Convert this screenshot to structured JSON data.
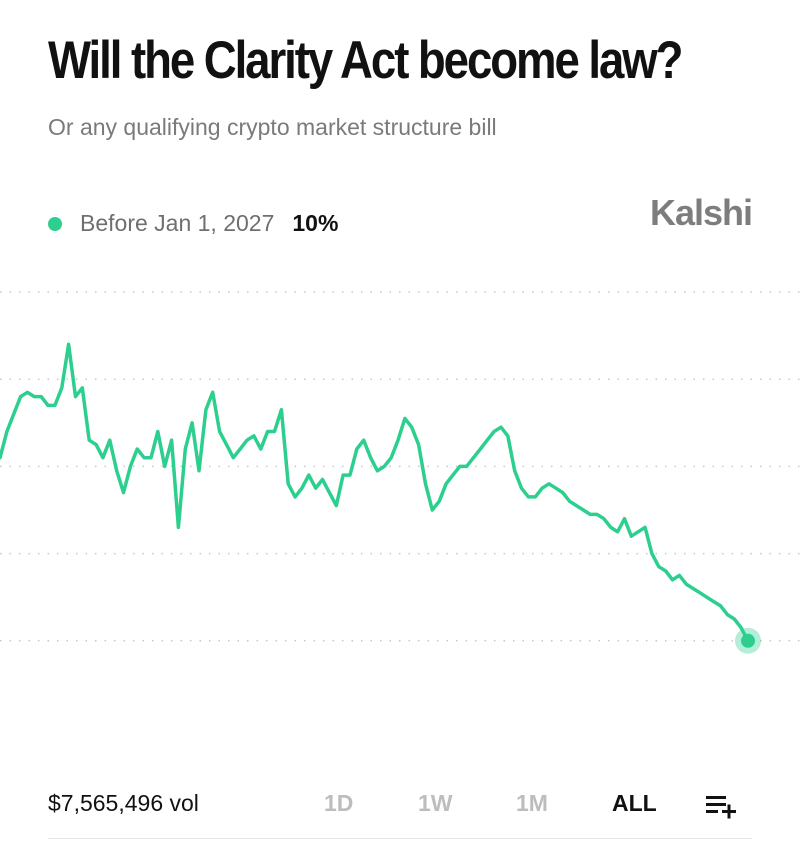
{
  "header": {
    "title": "Will the Clarity Act become law?",
    "subtitle": "Or any qualifying crypto market structure bill",
    "brand": "Kalshi"
  },
  "legend": {
    "label": "Before Jan 1, 2027",
    "value": "10%",
    "color": "#2ccf8e"
  },
  "footer": {
    "volume": "$7,565,496 vol",
    "ranges": [
      "1D",
      "1W",
      "1M",
      "ALL"
    ],
    "active_range": "ALL",
    "list_icon": "list-add-icon"
  },
  "chart_data": {
    "type": "line",
    "title": "",
    "xlabel": "",
    "ylabel": "",
    "ylim": [
      0,
      50
    ],
    "grid": "horizontal dotted, no axis labels",
    "series": [
      {
        "name": "Before Jan 1, 2027",
        "color": "#2ccf8e",
        "values": [
          31,
          34,
          36,
          38,
          38.5,
          38,
          38,
          37,
          37,
          39,
          44,
          38,
          39,
          33,
          32.5,
          31,
          33,
          29.5,
          27,
          30,
          32,
          31,
          31,
          34,
          30,
          33,
          23,
          32,
          35,
          29.5,
          36.5,
          38.5,
          34,
          32.5,
          31,
          32,
          33,
          33.5,
          32,
          34,
          34,
          36.5,
          28,
          26.5,
          27.5,
          29,
          27.5,
          28.5,
          27,
          25.5,
          29,
          29,
          32,
          33,
          31,
          29.5,
          30,
          31,
          33,
          35.5,
          34.5,
          32.5,
          28,
          25,
          26,
          28,
          29,
          30,
          30,
          31,
          32,
          33,
          34,
          34.5,
          33.5,
          29.5,
          27.5,
          26.5,
          26.5,
          27.5,
          28,
          27.5,
          27,
          26,
          25.5,
          25,
          24.5,
          24.5,
          24,
          23,
          22.5,
          24,
          22,
          22.5,
          23,
          20,
          18.5,
          18,
          17,
          17.5,
          16.5,
          16,
          15.5,
          15,
          14.5,
          14,
          13,
          12.5,
          11.5,
          10
        ]
      }
    ],
    "current_value": 10
  }
}
